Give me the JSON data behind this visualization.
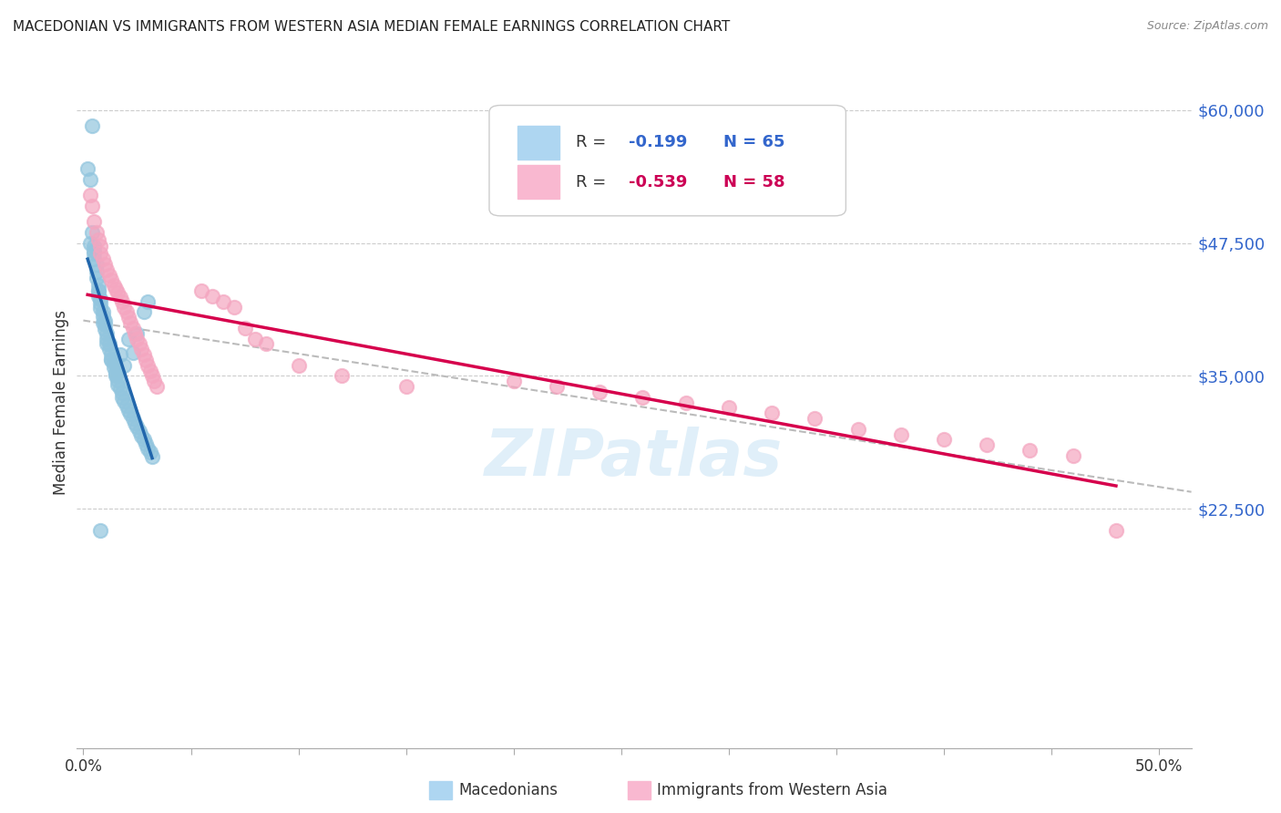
{
  "title": "MACEDONIAN VS IMMIGRANTS FROM WESTERN ASIA MEDIAN FEMALE EARNINGS CORRELATION CHART",
  "source": "Source: ZipAtlas.com",
  "ylabel": "Median Female Earnings",
  "xlim": [
    -0.003,
    0.515
  ],
  "ylim": [
    0,
    65000
  ],
  "yticks": [
    22500,
    35000,
    47500,
    60000
  ],
  "ytick_labels": [
    "$22,500",
    "$35,000",
    "$47,500",
    "$60,000"
  ],
  "color_blue": "#92c5de",
  "color_pink": "#f4a6c0",
  "color_line_blue": "#2166ac",
  "color_line_pink": "#d6004c",
  "color_dash": "#bbbbbb",
  "R_blue": -0.199,
  "N_blue": 65,
  "R_pink": -0.539,
  "N_pink": 58,
  "blue_x": [
    0.004,
    0.002,
    0.003,
    0.004,
    0.003,
    0.005,
    0.005,
    0.005,
    0.006,
    0.006,
    0.006,
    0.007,
    0.007,
    0.007,
    0.008,
    0.008,
    0.008,
    0.009,
    0.009,
    0.01,
    0.01,
    0.01,
    0.011,
    0.011,
    0.012,
    0.012,
    0.013,
    0.013,
    0.014,
    0.014,
    0.015,
    0.015,
    0.016,
    0.016,
    0.017,
    0.018,
    0.018,
    0.019,
    0.02,
    0.021,
    0.022,
    0.023,
    0.024,
    0.025,
    0.026,
    0.027,
    0.028,
    0.029,
    0.03,
    0.031,
    0.032,
    0.007,
    0.009,
    0.011,
    0.013,
    0.015,
    0.017,
    0.019,
    0.021,
    0.023,
    0.025,
    0.028,
    0.03,
    0.005,
    0.008
  ],
  "blue_y": [
    58500,
    54500,
    53500,
    48500,
    47500,
    47200,
    46800,
    46000,
    45500,
    44800,
    44200,
    43500,
    43000,
    42500,
    42200,
    41800,
    41400,
    41000,
    40600,
    40200,
    39800,
    39400,
    39000,
    38500,
    38000,
    37500,
    37000,
    36600,
    36200,
    35800,
    35400,
    35000,
    34600,
    34200,
    33800,
    33400,
    33000,
    32600,
    32200,
    31800,
    31400,
    31000,
    30600,
    30200,
    29800,
    29400,
    29000,
    28600,
    28200,
    27800,
    27400,
    43000,
    40000,
    38000,
    36500,
    35200,
    37000,
    36000,
    38500,
    37200,
    39000,
    41000,
    42000,
    46500,
    20500
  ],
  "pink_x": [
    0.003,
    0.004,
    0.005,
    0.006,
    0.007,
    0.008,
    0.008,
    0.009,
    0.01,
    0.011,
    0.012,
    0.013,
    0.014,
    0.015,
    0.016,
    0.017,
    0.018,
    0.019,
    0.02,
    0.021,
    0.022,
    0.023,
    0.024,
    0.025,
    0.026,
    0.027,
    0.028,
    0.029,
    0.03,
    0.031,
    0.032,
    0.033,
    0.034,
    0.055,
    0.06,
    0.065,
    0.07,
    0.075,
    0.08,
    0.085,
    0.2,
    0.22,
    0.24,
    0.26,
    0.28,
    0.3,
    0.32,
    0.34,
    0.36,
    0.38,
    0.4,
    0.42,
    0.44,
    0.46,
    0.1,
    0.12,
    0.15,
    0.48
  ],
  "pink_y": [
    52000,
    51000,
    49500,
    48500,
    47800,
    47200,
    46500,
    46000,
    45500,
    45000,
    44500,
    44000,
    43500,
    43200,
    42800,
    42400,
    42000,
    41500,
    41000,
    40500,
    40000,
    39500,
    39000,
    38500,
    38000,
    37500,
    37000,
    36500,
    36000,
    35500,
    35000,
    34500,
    34000,
    43000,
    42500,
    42000,
    41500,
    39500,
    38500,
    38000,
    34500,
    34000,
    33500,
    33000,
    32500,
    32000,
    31500,
    31000,
    30000,
    29500,
    29000,
    28500,
    28000,
    27500,
    36000,
    35000,
    34000,
    20500
  ]
}
